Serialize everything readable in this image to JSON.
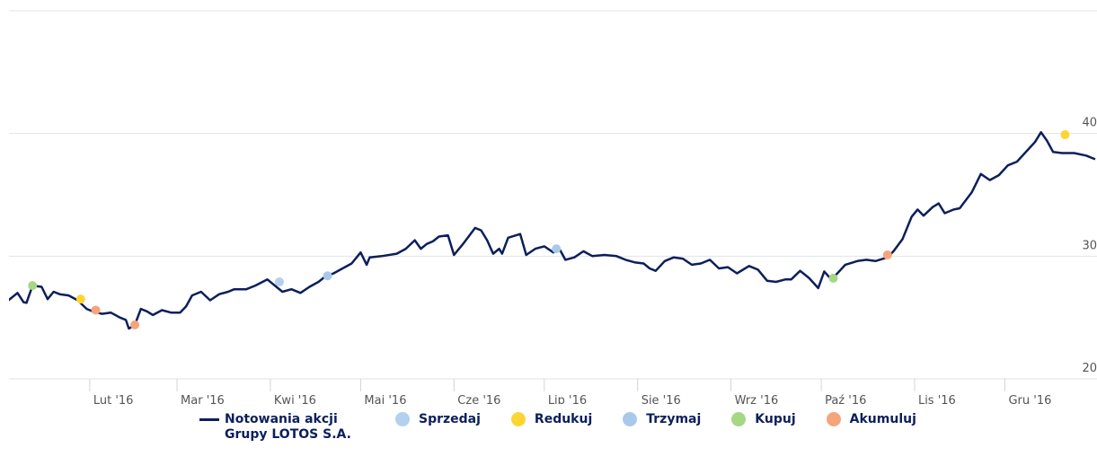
{
  "chart_data": {
    "type": "line",
    "xlim": [
      1,
      366
    ],
    "ylim": [
      20,
      50
    ],
    "yticks": [
      20,
      30,
      40
    ],
    "xticks": [
      {
        "value": 32,
        "label": "Lut '16"
      },
      {
        "value": 61,
        "label": "Mar '16"
      },
      {
        "value": 92,
        "label": "Kwi '16"
      },
      {
        "value": 122,
        "label": "Maj '16"
      },
      {
        "value": 153,
        "label": "Cze '16"
      },
      {
        "value": 183,
        "label": "Lip '16"
      },
      {
        "value": 214,
        "label": "Sie '16"
      },
      {
        "value": 245,
        "label": "Wrz '16"
      },
      {
        "value": 275,
        "label": "Paź '16"
      },
      {
        "value": 306,
        "label": "Lis '16"
      },
      {
        "value": 336,
        "label": "Gru '16"
      }
    ],
    "grid": true,
    "series": [
      {
        "name": "Notowania akcji Grupy LOTOS S.A.",
        "color": "#0c1f5b",
        "marker": false,
        "x": [
          5,
          8,
          10,
          11,
          13,
          16,
          18,
          20,
          22,
          25,
          28,
          31,
          33,
          36,
          39,
          42,
          44,
          45,
          47,
          49,
          51,
          53,
          56,
          59,
          62,
          64,
          66,
          69,
          72,
          75,
          78,
          80,
          84,
          87,
          91,
          94,
          96,
          99,
          102,
          105,
          108,
          110,
          113,
          116,
          119,
          122,
          124,
          125,
          129,
          134,
          137,
          140,
          142,
          144,
          146,
          148,
          151,
          153,
          156,
          160,
          162,
          164,
          166,
          168,
          169,
          171,
          175,
          177,
          180,
          183,
          186,
          188,
          190,
          193,
          196,
          199,
          203,
          207,
          210,
          213,
          216,
          218,
          220,
          223,
          226,
          229,
          232,
          235,
          238,
          241,
          244,
          247,
          251,
          254,
          257,
          260,
          263,
          265,
          268,
          271,
          274,
          276,
          278,
          280,
          283,
          287,
          290,
          293,
          297,
          299,
          302,
          305,
          307,
          309,
          312,
          314,
          316,
          319,
          321,
          325,
          328,
          331,
          334,
          337,
          340,
          343,
          346,
          348,
          350,
          352,
          355,
          359,
          363,
          366
        ],
        "values": [
          26.4,
          27.0,
          26.25,
          26.2,
          27.6,
          27.5,
          26.5,
          27.1,
          26.9,
          26.8,
          26.4,
          25.7,
          25.5,
          25.3,
          25.4,
          25.0,
          24.8,
          24.1,
          24.4,
          25.7,
          25.5,
          25.2,
          25.6,
          25.4,
          25.4,
          25.9,
          26.8,
          27.1,
          26.4,
          26.9,
          27.1,
          27.3,
          27.3,
          27.6,
          28.1,
          27.5,
          27.1,
          27.3,
          27.0,
          27.5,
          27.9,
          28.3,
          28.6,
          29.0,
          29.4,
          30.3,
          29.3,
          29.9,
          30.0,
          30.2,
          30.6,
          31.3,
          30.6,
          31.0,
          31.2,
          31.6,
          31.7,
          30.1,
          31.0,
          32.3,
          32.1,
          31.3,
          30.2,
          30.6,
          30.2,
          31.5,
          31.8,
          30.1,
          30.6,
          30.8,
          30.3,
          30.6,
          29.7,
          29.9,
          30.4,
          30.0,
          30.1,
          30.0,
          29.7,
          29.5,
          29.4,
          29.0,
          28.8,
          29.6,
          29.9,
          29.8,
          29.3,
          29.4,
          29.7,
          29.0,
          29.1,
          28.6,
          29.2,
          28.9,
          28.0,
          27.9,
          28.1,
          28.1,
          28.8,
          28.2,
          27.4,
          28.75,
          28.2,
          28.5,
          29.3,
          29.6,
          29.7,
          29.6,
          29.9,
          30.4,
          31.4,
          33.2,
          33.8,
          33.3,
          34.0,
          34.3,
          33.5,
          33.8,
          33.9,
          35.2,
          36.7,
          36.2,
          36.6,
          37.4,
          37.7,
          38.5,
          39.3,
          40.1,
          39.4,
          38.5,
          38.4,
          38.4,
          38.2,
          37.9
        ]
      },
      {
        "name": "Sprzedaj",
        "color": "#b3d1ee",
        "marker": true,
        "x": [
          95
        ],
        "values": [
          27.9
        ]
      },
      {
        "name": "Redukuj",
        "color": "#fcd535",
        "marker": true,
        "x": [
          29,
          356
        ],
        "values": [
          26.5,
          39.9
        ]
      },
      {
        "name": "Trzymaj",
        "color": "#a9c9eb",
        "marker": true,
        "x": [
          111,
          187
        ],
        "values": [
          28.4,
          30.6
        ]
      },
      {
        "name": "Kupuj",
        "color": "#a6d785",
        "marker": true,
        "x": [
          13,
          279
        ],
        "values": [
          27.6,
          28.2
        ]
      },
      {
        "name": "Akumuluj",
        "color": "#f4a57c",
        "marker": true,
        "x": [
          34,
          47,
          297
        ],
        "values": [
          25.6,
          24.4,
          30.1
        ]
      }
    ]
  }
}
